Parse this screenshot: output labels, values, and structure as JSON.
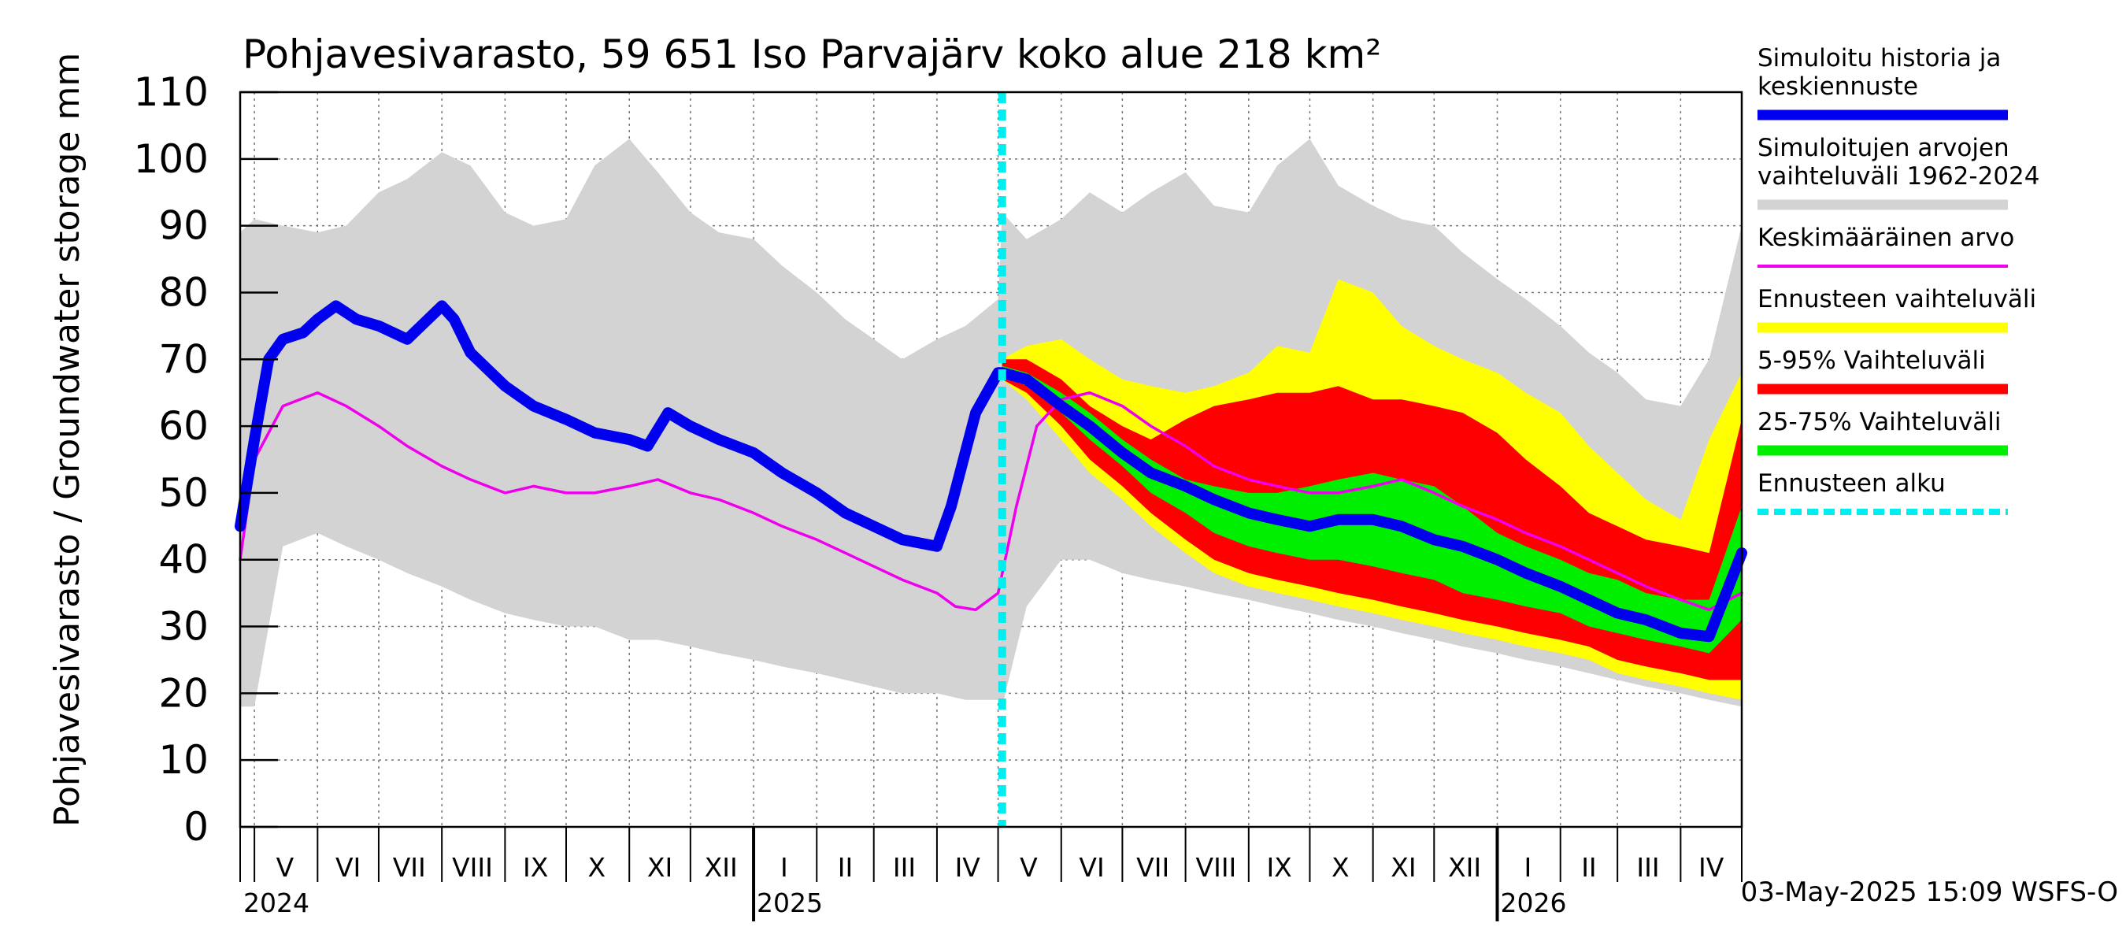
{
  "chart_data": {
    "type": "area",
    "title": "Pohjavesivarasto, 59 651 Iso Parvajärv koko alue 218 km²",
    "ylabel": "Pohjavesivarasto / Groundwater storage   mm",
    "ylim": [
      0,
      110
    ],
    "y_ticks": [
      "0",
      "10",
      "20",
      "30",
      "40",
      "50",
      "60",
      "70",
      "80",
      "90",
      "100",
      "110"
    ],
    "x_range": [
      "2024-04-24",
      "2026-05-01"
    ],
    "month_labels": [
      {
        "label": "V",
        "date": "2024-05-16"
      },
      {
        "label": "VI",
        "date": "2024-06-16"
      },
      {
        "label": "VII",
        "date": "2024-07-16"
      },
      {
        "label": "VIII",
        "date": "2024-08-16"
      },
      {
        "label": "IX",
        "date": "2024-09-16"
      },
      {
        "label": "X",
        "date": "2024-10-16"
      },
      {
        "label": "XI",
        "date": "2024-11-16"
      },
      {
        "label": "XII",
        "date": "2024-12-16"
      },
      {
        "label": "I",
        "date": "2025-01-16"
      },
      {
        "label": "II",
        "date": "2025-02-15"
      },
      {
        "label": "III",
        "date": "2025-03-16"
      },
      {
        "label": "IV",
        "date": "2025-04-16"
      },
      {
        "label": "V",
        "date": "2025-05-16"
      },
      {
        "label": "VI",
        "date": "2025-06-16"
      },
      {
        "label": "VII",
        "date": "2025-07-16"
      },
      {
        "label": "VIII",
        "date": "2025-08-16"
      },
      {
        "label": "IX",
        "date": "2025-09-16"
      },
      {
        "label": "X",
        "date": "2025-10-16"
      },
      {
        "label": "XI",
        "date": "2025-11-16"
      },
      {
        "label": "XII",
        "date": "2025-12-16"
      },
      {
        "label": "I",
        "date": "2026-01-16"
      },
      {
        "label": "II",
        "date": "2026-02-15"
      },
      {
        "label": "III",
        "date": "2026-03-16"
      },
      {
        "label": "IV",
        "date": "2026-04-16"
      }
    ],
    "year_labels": [
      {
        "label": "2024",
        "date": "2024-04-24"
      },
      {
        "label": "2025",
        "date": "2025-01-01"
      },
      {
        "label": "2026",
        "date": "2026-01-01"
      }
    ],
    "forecast_start": "2025-05-03",
    "legend_position": "right",
    "legend": [
      {
        "label": "Simuloitu historia ja\nkeskiennuste",
        "color": "#0000ee",
        "style": "thick"
      },
      {
        "label": "Simuloitujen arvojen\nvaihteluväli 1962-2024",
        "color": "#d3d3d3",
        "style": "thick"
      },
      {
        "label": "Keskimääräinen arvo",
        "color": "#ee00ee",
        "style": "thin"
      },
      {
        "label": "Ennusteen vaihteluväli",
        "color": "#ffff00",
        "style": "thick"
      },
      {
        "label": "5-95% Vaihteluväli",
        "color": "#ff0000",
        "style": "thick"
      },
      {
        "label": "25-75% Vaihteluväli",
        "color": "#00ee00",
        "style": "thick"
      },
      {
        "label": "Ennusteen alku",
        "color": "#00eeee",
        "style": "dashed"
      }
    ],
    "footer": "03-May-2025 15:09 WSFS-O",
    "series": [
      {
        "name": "Simuloitujen arvojen vaihteluväli 1962-2024",
        "color": "#d3d3d3",
        "kind": "band",
        "x": [
          "2024-04-24",
          "2024-05-01",
          "2024-05-15",
          "2024-06-01",
          "2024-06-15",
          "2024-07-01",
          "2024-07-15",
          "2024-08-01",
          "2024-08-15",
          "2024-09-01",
          "2024-09-15",
          "2024-10-01",
          "2024-10-15",
          "2024-11-01",
          "2024-11-15",
          "2024-12-01",
          "2024-12-15",
          "2025-01-01",
          "2025-01-15",
          "2025-02-01",
          "2025-02-15",
          "2025-03-01",
          "2025-03-15",
          "2025-04-01",
          "2025-04-15",
          "2025-05-01",
          "2025-05-03",
          "2025-05-15",
          "2025-06-01",
          "2025-06-15",
          "2025-07-01",
          "2025-07-15",
          "2025-08-01",
          "2025-08-15",
          "2025-09-01",
          "2025-09-15",
          "2025-10-01",
          "2025-10-15",
          "2025-11-01",
          "2025-11-15",
          "2025-12-01",
          "2025-12-15",
          "2026-01-01",
          "2026-01-15",
          "2026-02-01",
          "2026-02-15",
          "2026-03-01",
          "2026-03-15",
          "2026-04-01",
          "2026-04-15",
          "2026-05-01"
        ],
        "low": [
          18,
          18,
          42,
          44,
          42,
          40,
          38,
          36,
          34,
          32,
          31,
          30,
          30,
          28,
          28,
          27,
          26,
          25,
          24,
          23,
          22,
          21,
          20,
          20,
          19,
          19,
          18,
          33,
          40,
          40,
          38,
          37,
          36,
          35,
          34,
          33,
          32,
          31,
          30,
          29,
          28,
          27,
          26,
          25,
          24,
          23,
          22,
          21,
          20,
          19,
          18
        ],
        "high": [
          89,
          91,
          90,
          89,
          90,
          95,
          97,
          101,
          99,
          92,
          90,
          91,
          99,
          103,
          98,
          92,
          89,
          88,
          84,
          80,
          76,
          73,
          70,
          73,
          75,
          79,
          92,
          88,
          91,
          95,
          92,
          95,
          98,
          93,
          92,
          99,
          103,
          96,
          93,
          91,
          90,
          86,
          82,
          79,
          75,
          71,
          68,
          64,
          63,
          70,
          90
        ]
      },
      {
        "name": "Ennusteen vaihteluväli",
        "color": "#ffff00",
        "kind": "band",
        "x": [
          "2025-05-03",
          "2025-05-15",
          "2025-06-01",
          "2025-06-15",
          "2025-07-01",
          "2025-07-15",
          "2025-08-01",
          "2025-08-15",
          "2025-09-01",
          "2025-09-15",
          "2025-10-01",
          "2025-10-15",
          "2025-11-01",
          "2025-11-15",
          "2025-12-01",
          "2025-12-15",
          "2026-01-01",
          "2026-01-15",
          "2026-02-01",
          "2026-02-15",
          "2026-03-01",
          "2026-03-15",
          "2026-04-01",
          "2026-04-15",
          "2026-05-01"
        ],
        "low": [
          67,
          64,
          58,
          53,
          49,
          45,
          41,
          38,
          36,
          35,
          34,
          33,
          32,
          31,
          30,
          29,
          28,
          27,
          26,
          25,
          23,
          22,
          21,
          20,
          19
        ],
        "high": [
          70,
          72,
          73,
          70,
          67,
          66,
          65,
          66,
          68,
          72,
          71,
          82,
          80,
          75,
          72,
          70,
          68,
          65,
          62,
          57,
          53,
          49,
          46,
          58,
          68
        ]
      },
      {
        "name": "5-95% Vaihteluväli",
        "color": "#ff0000",
        "kind": "band",
        "x": [
          "2025-05-03",
          "2025-05-15",
          "2025-06-01",
          "2025-06-15",
          "2025-07-01",
          "2025-07-15",
          "2025-08-01",
          "2025-08-15",
          "2025-09-01",
          "2025-09-15",
          "2025-10-01",
          "2025-10-15",
          "2025-11-01",
          "2025-11-15",
          "2025-12-01",
          "2025-12-15",
          "2026-01-01",
          "2026-01-15",
          "2026-02-01",
          "2026-02-15",
          "2026-03-01",
          "2026-03-15",
          "2026-04-01",
          "2026-04-15",
          "2026-05-01"
        ],
        "low": [
          67,
          65,
          60,
          55,
          51,
          47,
          43,
          40,
          38,
          37,
          36,
          35,
          34,
          33,
          32,
          31,
          30,
          29,
          28,
          27,
          25,
          24,
          23,
          22,
          22
        ],
        "high": [
          70,
          70,
          67,
          63,
          60,
          58,
          61,
          63,
          64,
          65,
          65,
          66,
          64,
          64,
          63,
          62,
          59,
          55,
          51,
          47,
          45,
          43,
          42,
          41,
          61
        ]
      },
      {
        "name": "25-75% Vaihteluväli",
        "color": "#00ee00",
        "kind": "band",
        "x": [
          "2025-05-03",
          "2025-05-15",
          "2025-06-01",
          "2025-06-15",
          "2025-07-01",
          "2025-07-15",
          "2025-08-01",
          "2025-08-15",
          "2025-09-01",
          "2025-09-15",
          "2025-10-01",
          "2025-10-15",
          "2025-11-01",
          "2025-11-15",
          "2025-12-01",
          "2025-12-15",
          "2026-01-01",
          "2026-01-15",
          "2026-02-01",
          "2026-02-15",
          "2026-03-01",
          "2026-03-15",
          "2026-04-01",
          "2026-04-15",
          "2026-05-01"
        ],
        "low": [
          68,
          66,
          62,
          58,
          54,
          50,
          47,
          44,
          42,
          41,
          40,
          40,
          39,
          38,
          37,
          35,
          34,
          33,
          32,
          30,
          29,
          28,
          27,
          26,
          31
        ],
        "high": [
          69,
          68,
          65,
          62,
          58,
          55,
          52,
          51,
          50,
          50,
          51,
          52,
          53,
          52,
          51,
          48,
          44,
          42,
          40,
          38,
          37,
          35,
          34,
          34,
          48
        ]
      },
      {
        "name": "Keskimääräinen arvo",
        "color": "#ee00ee",
        "kind": "line",
        "x": [
          "2024-04-24",
          "2024-05-01",
          "2024-05-15",
          "2024-06-01",
          "2024-06-15",
          "2024-07-01",
          "2024-07-15",
          "2024-08-01",
          "2024-08-15",
          "2024-09-01",
          "2024-09-15",
          "2024-10-01",
          "2024-10-15",
          "2024-11-01",
          "2024-11-15",
          "2024-12-01",
          "2024-12-15",
          "2025-01-01",
          "2025-01-15",
          "2025-02-01",
          "2025-02-15",
          "2025-03-01",
          "2025-03-15",
          "2025-04-01",
          "2025-04-10",
          "2025-04-20",
          "2025-05-01",
          "2025-05-10",
          "2025-05-20",
          "2025-06-01",
          "2025-06-15",
          "2025-07-01",
          "2025-07-15",
          "2025-08-01",
          "2025-08-15",
          "2025-09-01",
          "2025-09-15",
          "2025-10-01",
          "2025-10-15",
          "2025-11-01",
          "2025-11-15",
          "2025-12-01",
          "2025-12-15",
          "2026-01-01",
          "2026-01-15",
          "2026-02-01",
          "2026-02-15",
          "2026-03-01",
          "2026-03-15",
          "2026-04-01",
          "2026-04-15",
          "2026-05-01"
        ],
        "y": [
          40,
          55,
          63,
          65,
          63,
          60,
          57,
          54,
          52,
          50,
          51,
          50,
          50,
          51,
          52,
          50,
          49,
          47,
          45,
          43,
          41,
          39,
          37,
          35,
          33,
          32.5,
          35,
          48,
          60,
          64,
          65,
          63,
          60,
          57,
          54,
          52,
          51,
          50,
          50,
          51,
          52,
          50,
          48,
          46,
          44,
          42,
          40,
          38,
          36,
          34,
          32.5,
          35
        ]
      },
      {
        "name": "Simuloitu historia ja keskiennuste",
        "color": "#0000ee",
        "kind": "line",
        "x": [
          "2024-04-24",
          "2024-05-01",
          "2024-05-08",
          "2024-05-15",
          "2024-05-25",
          "2024-06-01",
          "2024-06-10",
          "2024-06-20",
          "2024-07-01",
          "2024-07-15",
          "2024-08-01",
          "2024-08-07",
          "2024-08-15",
          "2024-09-01",
          "2024-09-15",
          "2024-10-01",
          "2024-10-15",
          "2024-11-01",
          "2024-11-10",
          "2024-11-20",
          "2024-12-01",
          "2024-12-15",
          "2025-01-01",
          "2025-01-15",
          "2025-02-01",
          "2025-02-15",
          "2025-03-01",
          "2025-03-15",
          "2025-04-01",
          "2025-04-08",
          "2025-04-20",
          "2025-05-01",
          "2025-05-03",
          "2025-05-15",
          "2025-06-01",
          "2025-06-15",
          "2025-07-01",
          "2025-07-15",
          "2025-08-01",
          "2025-08-15",
          "2025-09-01",
          "2025-09-15",
          "2025-10-01",
          "2025-10-15",
          "2025-11-01",
          "2025-11-15",
          "2025-12-01",
          "2025-12-15",
          "2026-01-01",
          "2026-01-15",
          "2026-02-01",
          "2026-02-15",
          "2026-03-01",
          "2026-03-15",
          "2026-04-01",
          "2026-04-15",
          "2026-05-01"
        ],
        "y": [
          45,
          58,
          70,
          73,
          74,
          76,
          78,
          76,
          75,
          73,
          78,
          76,
          71,
          66,
          63,
          61,
          59,
          58,
          57,
          62,
          60,
          58,
          56,
          53,
          50,
          47,
          45,
          43,
          42,
          48,
          62,
          68,
          68,
          67,
          63,
          60,
          56,
          53,
          51,
          49,
          47,
          46,
          45,
          46,
          46,
          45,
          43,
          42,
          40,
          38,
          36,
          34,
          32,
          31,
          29,
          28.5,
          41
        ]
      }
    ]
  }
}
